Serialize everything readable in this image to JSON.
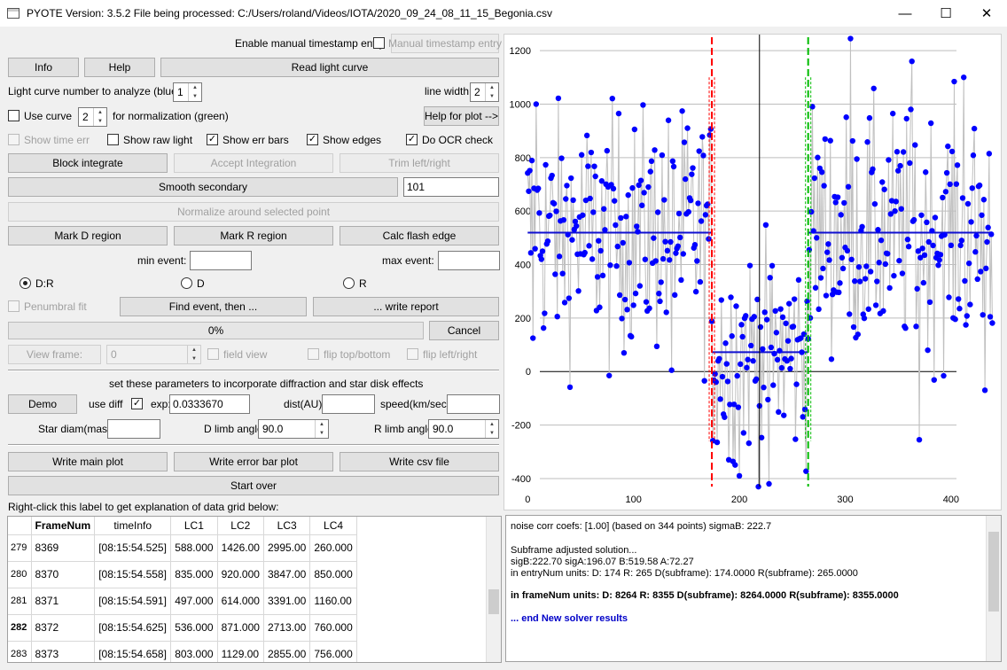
{
  "window": {
    "title": "PYOTE Version: 3.5.2  File being processed: C:/Users/roland/Videos/IOTA/2020_09_24_08_11_15_Begonia.csv",
    "minimize": "—",
    "maximize": "☐",
    "close": "✕"
  },
  "controls": {
    "enable_manual_ts_label": "Enable manual timestamp entry",
    "manual_ts_button": "Manual timestamp entry",
    "info_button": "Info",
    "help_button": "Help",
    "read_light_curve_button": "Read light curve",
    "lc_number_label": "Light curve number to analyze (blue):",
    "lc_number_value": "1",
    "line_width_label": "line width",
    "line_width_value": "2",
    "use_curve_label": "Use curve",
    "use_curve_value": "2",
    "for_normalization_label": "for normalization (green)",
    "help_for_plot_button": "Help for plot -->",
    "show_time_err": "Show time err",
    "show_raw_light": "Show raw light",
    "show_err_bars": "Show err bars",
    "show_edges": "Show edges",
    "do_ocr_check": "Do OCR check",
    "checked_mark": "✓",
    "block_integrate_button": "Block integrate",
    "accept_integration_button": "Accept Integration",
    "trim_button": "Trim left/right",
    "smooth_secondary_button": "Smooth secondary",
    "smooth_value": "101",
    "normalize_button": "Normalize around selected point",
    "mark_d_button": "Mark D region",
    "mark_r_button": "Mark R region",
    "calc_flash_button": "Calc flash edge",
    "min_event_label": "min event:",
    "max_event_label": "max event:",
    "radio_dr": "D:R",
    "radio_d": "D",
    "radio_r": "R",
    "penumbral_fit": "Penumbral fit",
    "find_event_button": "Find event, then ...",
    "write_report_button": "... write report",
    "progress_text": "0%",
    "cancel_button": "Cancel",
    "view_frame_button": "View frame:",
    "view_frame_value": "0",
    "field_view": "field view",
    "flip_top_bottom": "flip top/bottom",
    "flip_left_right": "flip left/right",
    "diffraction_label": "set these parameters to incorporate diffraction and star disk effects",
    "demo_button": "Demo",
    "use_diff_label": "use diff",
    "exp_label": "exp:",
    "exp_value": "0.0333670",
    "dist_label": "dist(AU):",
    "speed_label": "speed(km/sec):",
    "star_diam_label": "Star diam(mas):",
    "d_limb_label": "D limb angle:",
    "d_limb_value": "90.0",
    "r_limb_label": "R limb angle:",
    "r_limb_value": "90.0",
    "write_main_plot_button": "Write main plot",
    "write_error_bar_button": "Write error bar plot",
    "write_csv_button": "Write csv file",
    "start_over_button": "Start over",
    "grid_hint_label": "Right-click this label to get explanation of data grid below:"
  },
  "table": {
    "headers": [
      "",
      "FrameNum",
      "timeInfo",
      "LC1",
      "LC2",
      "LC3",
      "LC4"
    ],
    "rows": [
      [
        "279",
        "8369",
        "[08:15:54.525]",
        "588.000",
        "1426.00",
        "2995.00",
        "260.000"
      ],
      [
        "280",
        "8370",
        "[08:15:54.558]",
        "835.000",
        "920.000",
        "3847.00",
        "850.000"
      ],
      [
        "281",
        "8371",
        "[08:15:54.591]",
        "497.000",
        "614.000",
        "3391.00",
        "1160.00"
      ],
      [
        "282",
        "8372",
        "[08:15:54.625]",
        "536.000",
        "871.000",
        "2713.00",
        "760.000"
      ],
      [
        "283",
        "8373",
        "[08:15:54.658]",
        "803.000",
        "1129.00",
        "2855.00",
        "756.000"
      ]
    ],
    "selected_row": "282"
  },
  "output": {
    "line1": "noise corr coefs: [1.00] (based on 344 points) sigmaB: 222.7",
    "line2": "Subframe adjusted solution...",
    "line3": "sigB:222.70 sigA:196.07 B:519.58 A:72.27",
    "line4": "in entryNum units: D: 174 R: 265 D(subframe): 174.0000 R(subframe): 265.0000",
    "line5": "in frameNum units: D: 8264 R: 8355 D(subframe): 8264.0000 R(subframe): 8355.0000",
    "line6": "... end New solver results",
    "line6_color": "#0000c8"
  },
  "chart_data": {
    "type": "scatter",
    "xlim": [
      -22,
      447
    ],
    "ylim": [
      -430,
      1260
    ],
    "x_ticks": [
      0,
      100,
      200,
      300,
      400
    ],
    "y_ticks": [
      -400,
      -200,
      0,
      200,
      400,
      600,
      800,
      1000,
      1200
    ],
    "grid": true,
    "colors": {
      "points": "#0000ff",
      "lines": "#c0c0c0",
      "baseline": "#1010d0",
      "d_edge": "#ff0000",
      "r_edge": "#00bb00",
      "cursor": "#000000"
    },
    "D_edge": 174,
    "R_edge": 265,
    "cursor_x": 219,
    "B_level": 519.58,
    "A_level": 72.27,
    "sigB": 222.7,
    "sigA": 196.07,
    "N": 440,
    "highlights": [
      {
        "x": 8,
        "y": 1000
      },
      {
        "x": 305,
        "y": 1245
      },
      {
        "x": 363,
        "y": 1160
      },
      {
        "x": 412,
        "y": 1100
      },
      {
        "x": 77,
        "y": -15
      },
      {
        "x": 136,
        "y": 5
      },
      {
        "x": 370,
        "y": -255
      },
      {
        "x": 432,
        "y": -70
      },
      {
        "x": 228,
        "y": -420
      },
      {
        "x": 200,
        "y": -390
      },
      {
        "x": 190,
        "y": -330
      },
      {
        "x": 5,
        "y": 125
      }
    ]
  }
}
